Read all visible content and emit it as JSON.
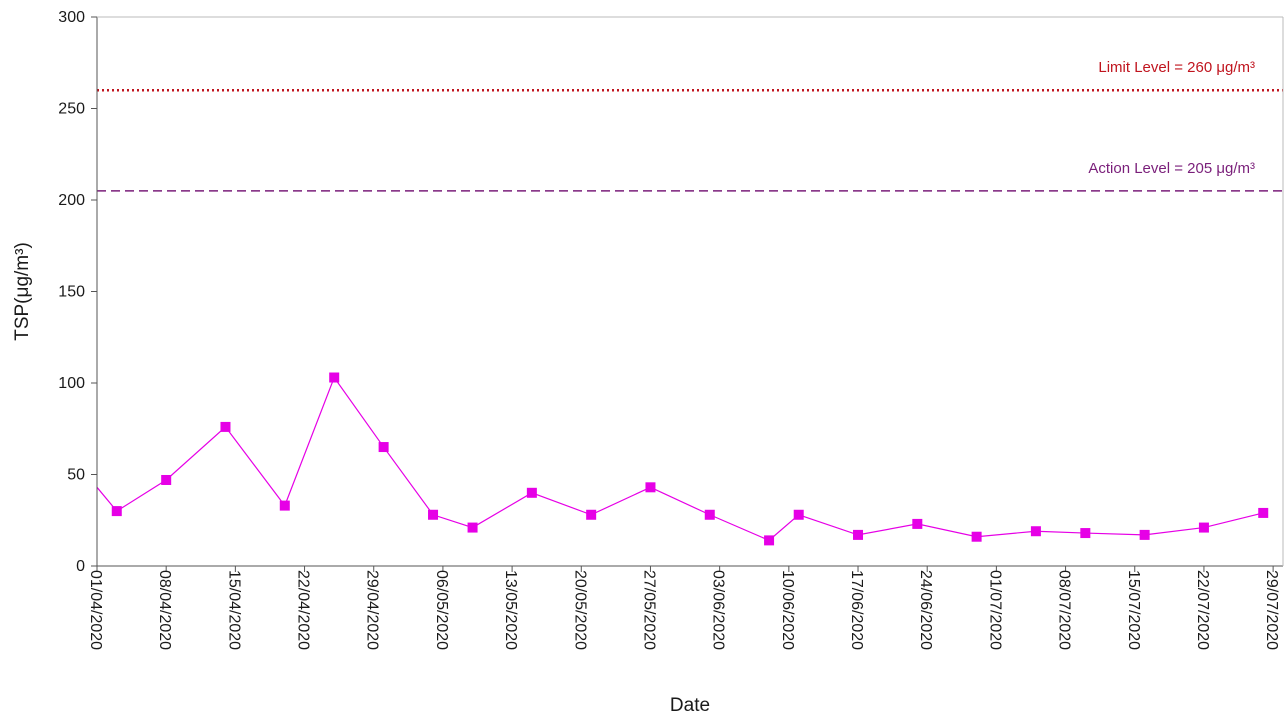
{
  "chart_data": {
    "type": "line",
    "title": "",
    "xlabel": "Date",
    "ylabel": "TSP(μg/m³)",
    "ylim": [
      0,
      300
    ],
    "xlim": [
      "01/04/2020",
      "30/07/2020"
    ],
    "yticks": [
      "0",
      "50",
      "100",
      "150",
      "200",
      "250",
      "300"
    ],
    "xticks": [
      "01/04/2020",
      "08/04/2020",
      "15/04/2020",
      "22/04/2020",
      "29/04/2020",
      "06/05/2020",
      "13/05/2020",
      "20/05/2020",
      "27/05/2020",
      "03/06/2020",
      "10/06/2020",
      "17/06/2020",
      "24/06/2020",
      "01/07/2020",
      "08/07/2020",
      "15/07/2020",
      "22/07/2020",
      "29/07/2020"
    ],
    "grid": false,
    "series": [
      {
        "color": "#e600e6",
        "marker": "square",
        "x": [
          "01/04/2020",
          "03/04/2020",
          "08/04/2020",
          "14/04/2020",
          "20/04/2020",
          "25/04/2020",
          "30/04/2020",
          "05/05/2020",
          "09/05/2020",
          "15/05/2020",
          "21/05/2020",
          "27/05/2020",
          "02/06/2020",
          "08/06/2020",
          "11/06/2020",
          "17/06/2020",
          "23/06/2020",
          "29/06/2020",
          "05/07/2020",
          "10/07/2020",
          "16/07/2020",
          "22/07/2020",
          "28/07/2020"
        ],
        "y": [
          43,
          30,
          47,
          76,
          33,
          103,
          65,
          28,
          21,
          40,
          28,
          43,
          28,
          14,
          28,
          17,
          23,
          16,
          19,
          18,
          17,
          21,
          29
        ],
        "clipped_start": true
      }
    ],
    "reference_lines": [
      {
        "value": 260,
        "label": "Limit Level  = 260 μg/m³",
        "color": "#c0141e",
        "style": "dotted"
      },
      {
        "value": 205,
        "label": "Action Level  = 205 μg/m³",
        "color": "#7a1f7a",
        "style": "dashed"
      }
    ]
  }
}
